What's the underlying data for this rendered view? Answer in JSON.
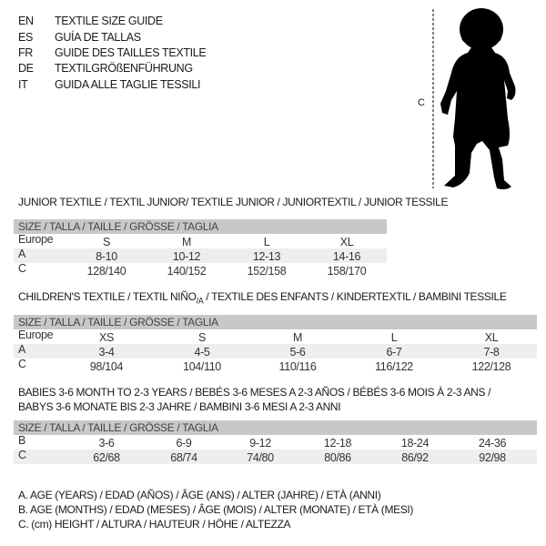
{
  "header": {
    "languages": [
      {
        "code": "EN",
        "text": "TEXTILE SIZE GUIDE"
      },
      {
        "code": "ES",
        "text": "GUÍA DE TALLAS"
      },
      {
        "code": "FR",
        "text": "GUIDE DES TAILLES TEXTILE"
      },
      {
        "code": "DE",
        "text": "TEXTILGRÖßENFÜHRUNG"
      },
      {
        "code": "IT",
        "text": "GUIDA ALLE TAGLIE TESSILI"
      }
    ],
    "figure_label": "C",
    "figure_icon": "child-silhouette-icon"
  },
  "junior": {
    "title": "JUNIOR TEXTILE / TEXTIL JUNIOR/ TEXTILE JUNIOR / JUNIORTEXTIL / JUNIOR TESSILE",
    "size_header": "SIZE / TALLA / TAILLE / GRÖSSE / TAGLIA",
    "rows": [
      {
        "label": "Europe",
        "cells": [
          "S",
          "M",
          "L",
          "XL"
        ]
      },
      {
        "label": "A",
        "cells": [
          "8-10",
          "10-12",
          "12-13",
          "14-16"
        ]
      },
      {
        "label": "C",
        "cells": [
          "128/140",
          "140/152",
          "152/158",
          "158/170"
        ]
      }
    ]
  },
  "children": {
    "title_main": "CHILDREN'S TEXTILE / TEXTIL NIÑO",
    "title_sub": "/A",
    "title_rest": " / TEXTILE DES ENFANTS / KINDERTEXTIL / BAMBINI TESSILE",
    "size_header": "SIZE / TALLA / TAILLE / GRÖSSE / TAGLIA",
    "rows": [
      {
        "label": "Europe",
        "cells": [
          "XS",
          "S",
          "M",
          "L",
          "XL"
        ]
      },
      {
        "label": "A",
        "cells": [
          "3-4",
          "4-5",
          "5-6",
          "6-7",
          "7-8"
        ]
      },
      {
        "label": "C",
        "cells": [
          "98/104",
          "104/110",
          "110/116",
          "116/122",
          "122/128"
        ]
      }
    ]
  },
  "babies": {
    "title_line1": "BABIES 3-6 MONTH TO 2-3 YEARS / BEBÉS 3-6 MESES A 2-3 AÑOS / BÉBÉS 3-6 MOIS À 2-3 ANS /",
    "title_line2": "BABYS 3-6 MONATE BIS 2-3 JAHRE / BAMBINI 3-6 MESI A 2-3 ANNI",
    "size_header": "SIZE / TALLA / TAILLE / GRÖSSE / TAGLIA",
    "rows": [
      {
        "label": "B",
        "cells": [
          "3-6",
          "6-9",
          "9-12",
          "12-18",
          "18-24",
          "24-36"
        ]
      },
      {
        "label": "C",
        "cells": [
          "62/68",
          "68/74",
          "74/80",
          "80/86",
          "86/92",
          "92/98"
        ]
      }
    ]
  },
  "legend": [
    "A. AGE (YEARS) / EDAD (AÑOS) / ÂGE (ANS) / ALTER (JAHRE) / ETÀ (ANNI)",
    "B. AGE (MONTHS) / EDAD (MESES) / ÂGE (MOIS) / ALTER (MONATE) / ETÀ (MESI)",
    "C. (cm) HEIGHT / ALTURA / HAUTEUR / HÖHE / ALTEZZA"
  ]
}
